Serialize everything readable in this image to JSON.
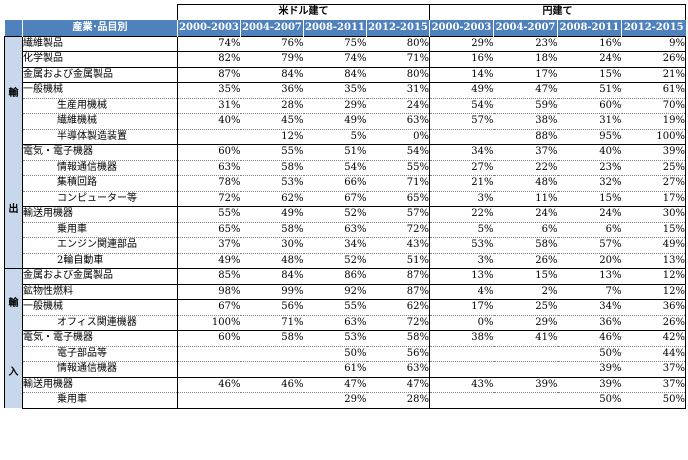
{
  "header": {
    "usd_group": "米ドル建て",
    "jpy_group": "円建て",
    "category_header": "産業･品目別",
    "periods": [
      "2000-2003",
      "2004-2007",
      "2008-2011",
      "2012-2015"
    ]
  },
  "sections": {
    "export": {
      "label_top": "輸",
      "label_bottom": "出"
    },
    "import": {
      "label_top": "輸",
      "label_bottom": "入"
    }
  },
  "rows": [
    {
      "name": "繊維製品",
      "usd": [
        "74%",
        "76%",
        "75%",
        "80%"
      ],
      "jpy": [
        "29%",
        "23%",
        "16%",
        "9%"
      ]
    },
    {
      "name": "化学製品",
      "usd": [
        "82%",
        "79%",
        "74%",
        "71%"
      ],
      "jpy": [
        "16%",
        "18%",
        "24%",
        "26%"
      ]
    },
    {
      "name": "金属および金属製品",
      "usd": [
        "87%",
        "84%",
        "84%",
        "80%"
      ],
      "jpy": [
        "14%",
        "17%",
        "15%",
        "21%"
      ]
    },
    {
      "name": "一般機械",
      "usd": [
        "35%",
        "36%",
        "35%",
        "31%"
      ],
      "jpy": [
        "49%",
        "47%",
        "51%",
        "61%"
      ]
    },
    {
      "name": "生産用機械",
      "usd": [
        "31%",
        "28%",
        "29%",
        "24%"
      ],
      "jpy": [
        "54%",
        "59%",
        "60%",
        "70%"
      ]
    },
    {
      "name": "繊維機械",
      "usd": [
        "40%",
        "45%",
        "49%",
        "63%"
      ],
      "jpy": [
        "57%",
        "38%",
        "31%",
        "19%"
      ]
    },
    {
      "name": "半導体製造装置",
      "usd": [
        "",
        "12%",
        "5%",
        "0%"
      ],
      "jpy": [
        "",
        "88%",
        "95%",
        "100%"
      ]
    },
    {
      "name": "電気・電子機器",
      "usd": [
        "60%",
        "55%",
        "51%",
        "54%"
      ],
      "jpy": [
        "34%",
        "37%",
        "40%",
        "39%"
      ]
    },
    {
      "name": "情報通信機器",
      "usd": [
        "63%",
        "58%",
        "54%",
        "55%"
      ],
      "jpy": [
        "27%",
        "22%",
        "23%",
        "25%"
      ]
    },
    {
      "name": "集積回路",
      "usd": [
        "78%",
        "53%",
        "66%",
        "71%"
      ],
      "jpy": [
        "21%",
        "48%",
        "32%",
        "27%"
      ]
    },
    {
      "name": "コンピューター等",
      "usd": [
        "72%",
        "62%",
        "67%",
        "65%"
      ],
      "jpy": [
        "3%",
        "11%",
        "15%",
        "17%"
      ]
    },
    {
      "name": "輸送用機器",
      "usd": [
        "55%",
        "49%",
        "52%",
        "57%"
      ],
      "jpy": [
        "22%",
        "24%",
        "24%",
        "30%"
      ]
    },
    {
      "name": "乗用車",
      "usd": [
        "65%",
        "58%",
        "63%",
        "72%"
      ],
      "jpy": [
        "5%",
        "6%",
        "6%",
        "15%"
      ]
    },
    {
      "name": "エンジン関連部品",
      "usd": [
        "37%",
        "30%",
        "34%",
        "43%"
      ],
      "jpy": [
        "53%",
        "58%",
        "57%",
        "49%"
      ]
    },
    {
      "name": "2輪自動車",
      "usd": [
        "49%",
        "48%",
        "52%",
        "51%"
      ],
      "jpy": [
        "3%",
        "26%",
        "20%",
        "13%"
      ]
    },
    {
      "name": "金属および金属製品",
      "usd": [
        "85%",
        "84%",
        "86%",
        "87%"
      ],
      "jpy": [
        "13%",
        "15%",
        "13%",
        "12%"
      ]
    },
    {
      "name": "鉱物性燃料",
      "usd": [
        "98%",
        "99%",
        "92%",
        "87%"
      ],
      "jpy": [
        "4%",
        "2%",
        "7%",
        "12%"
      ]
    },
    {
      "name": "一般機械",
      "usd": [
        "67%",
        "56%",
        "55%",
        "62%"
      ],
      "jpy": [
        "17%",
        "25%",
        "34%",
        "36%"
      ]
    },
    {
      "name": "オフィス関連機器",
      "usd": [
        "100%",
        "71%",
        "63%",
        "72%"
      ],
      "jpy": [
        "0%",
        "29%",
        "36%",
        "26%"
      ]
    },
    {
      "name": "電気・電子機器",
      "usd": [
        "60%",
        "58%",
        "53%",
        "58%"
      ],
      "jpy": [
        "38%",
        "41%",
        "46%",
        "42%"
      ]
    },
    {
      "name": "電子部品等",
      "usd": [
        "",
        "",
        "50%",
        "56%"
      ],
      "jpy": [
        "",
        "",
        "50%",
        "44%"
      ]
    },
    {
      "name": "情報通信機器",
      "usd": [
        "",
        "",
        "61%",
        "63%"
      ],
      "jpy": [
        "",
        "",
        "39%",
        "37%"
      ]
    },
    {
      "name": "輸送用機器",
      "usd": [
        "46%",
        "46%",
        "47%",
        "47%"
      ],
      "jpy": [
        "43%",
        "39%",
        "39%",
        "37%"
      ]
    },
    {
      "name": "乗用車",
      "usd": [
        "",
        "",
        "29%",
        "28%"
      ],
      "jpy": [
        "",
        "",
        "50%",
        "50%"
      ]
    }
  ]
}
